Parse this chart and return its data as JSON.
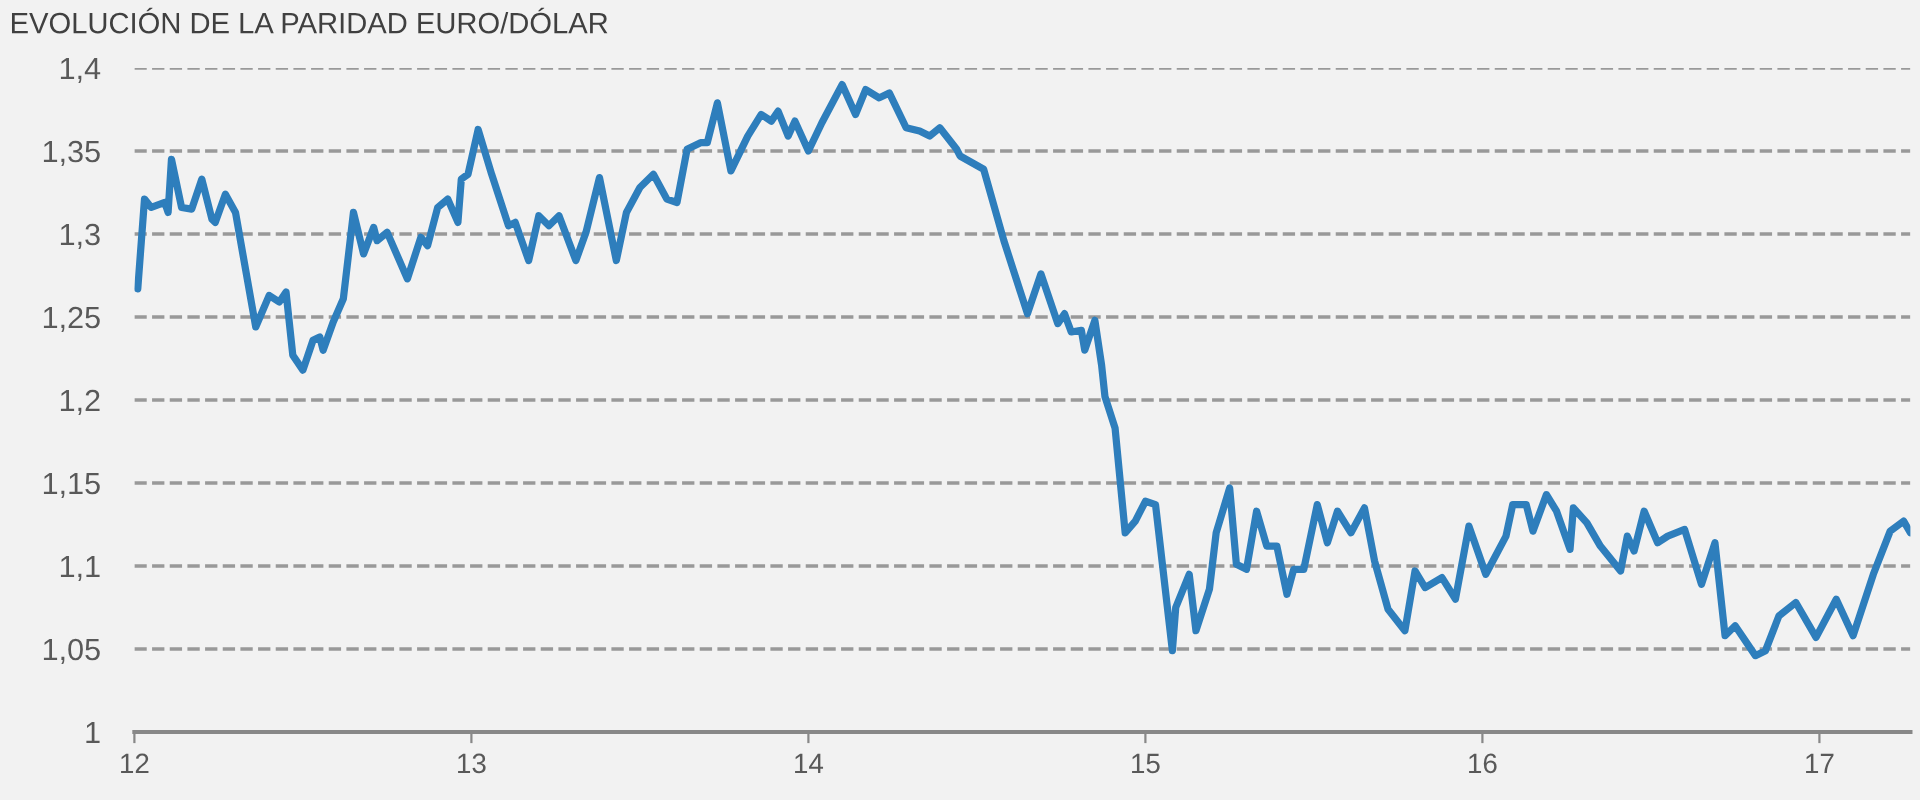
{
  "chart_data": {
    "type": "line",
    "title": "EVOLUCIÓN DE LA PARIDAD EURO/DÓLAR",
    "x": [
      12.01,
      12.03,
      12.05,
      12.09,
      12.1,
      12.11,
      12.14,
      12.17,
      12.2,
      12.23,
      12.24,
      12.27,
      12.3,
      12.36,
      12.4,
      12.43,
      12.45,
      12.47,
      12.5,
      12.53,
      12.55,
      12.56,
      12.59,
      12.62,
      12.65,
      12.68,
      12.71,
      12.72,
      12.75,
      12.81,
      12.85,
      12.87,
      12.9,
      12.93,
      12.96,
      12.97,
      12.99,
      13.02,
      13.06,
      13.11,
      13.13,
      13.17,
      13.2,
      13.23,
      13.26,
      13.31,
      13.34,
      13.38,
      13.43,
      13.46,
      13.5,
      13.54,
      13.58,
      13.61,
      13.64,
      13.68,
      13.7,
      13.73,
      13.77,
      13.82,
      13.86,
      13.89,
      13.91,
      13.94,
      13.96,
      14.0,
      14.04,
      14.1,
      14.14,
      14.17,
      14.21,
      14.24,
      14.29,
      14.33,
      14.36,
      14.39,
      14.44,
      14.45,
      14.52,
      14.58,
      14.65,
      14.69,
      14.74,
      14.76,
      14.78,
      14.81,
      14.82,
      14.85,
      14.87,
      14.88,
      14.91,
      14.94,
      14.97,
      15.0,
      15.03,
      15.08,
      15.09,
      15.13,
      15.15,
      15.19,
      15.21,
      15.25,
      15.27,
      15.3,
      15.33,
      15.36,
      15.39,
      15.42,
      15.44,
      15.47,
      15.51,
      15.54,
      15.57,
      15.61,
      15.65,
      15.68,
      15.72,
      15.77,
      15.8,
      15.83,
      15.88,
      15.92,
      15.96,
      16.01,
      16.07,
      16.09,
      16.13,
      16.15,
      16.19,
      16.22,
      16.26,
      16.27,
      16.31,
      16.35,
      16.41,
      16.43,
      16.45,
      16.48,
      16.52,
      16.55,
      16.6,
      16.65,
      16.69,
      16.72,
      16.75,
      16.81,
      16.84,
      16.88,
      16.93,
      16.99,
      17.05,
      17.1,
      17.16,
      17.21,
      17.25,
      17.27
    ],
    "series": [
      {
        "color": "#2e7ebc",
        "values": [
          1.267,
          1.321,
          1.316,
          1.319,
          1.313,
          1.345,
          1.316,
          1.315,
          1.333,
          1.309,
          1.307,
          1.324,
          1.313,
          1.244,
          1.263,
          1.259,
          1.265,
          1.227,
          1.218,
          1.236,
          1.238,
          1.23,
          1.247,
          1.261,
          1.313,
          1.288,
          1.304,
          1.296,
          1.301,
          1.273,
          1.298,
          1.293,
          1.316,
          1.321,
          1.307,
          1.333,
          1.336,
          1.363,
          1.336,
          1.305,
          1.307,
          1.284,
          1.311,
          1.305,
          1.311,
          1.284,
          1.301,
          1.334,
          1.284,
          1.313,
          1.328,
          1.336,
          1.321,
          1.319,
          1.351,
          1.355,
          1.355,
          1.379,
          1.338,
          1.359,
          1.372,
          1.368,
          1.374,
          1.359,
          1.368,
          1.35,
          1.367,
          1.39,
          1.372,
          1.387,
          1.382,
          1.385,
          1.364,
          1.362,
          1.359,
          1.364,
          1.351,
          1.347,
          1.339,
          1.296,
          1.252,
          1.276,
          1.246,
          1.252,
          1.241,
          1.242,
          1.23,
          1.248,
          1.221,
          1.202,
          1.183,
          1.12,
          1.127,
          1.139,
          1.137,
          1.049,
          1.075,
          1.095,
          1.061,
          1.086,
          1.12,
          1.147,
          1.101,
          1.098,
          1.133,
          1.112,
          1.112,
          1.083,
          1.098,
          1.098,
          1.137,
          1.114,
          1.133,
          1.12,
          1.135,
          1.103,
          1.074,
          1.061,
          1.097,
          1.087,
          1.093,
          1.08,
          1.124,
          1.095,
          1.118,
          1.137,
          1.137,
          1.121,
          1.143,
          1.133,
          1.11,
          1.135,
          1.126,
          1.112,
          1.097,
          1.118,
          1.109,
          1.133,
          1.114,
          1.118,
          1.122,
          1.089,
          1.114,
          1.058,
          1.064,
          1.046,
          1.049,
          1.07,
          1.078,
          1.057,
          1.08,
          1.058,
          1.095,
          1.121,
          1.127,
          1.12
        ]
      }
    ],
    "xlim": [
      12,
      17.27
    ],
    "xticks": [
      12,
      13,
      14,
      15,
      16,
      17
    ],
    "ylim": [
      1,
      1.4
    ],
    "yticks": [
      1,
      {
        "value": 1.05,
        "label": "1,05"
      },
      {
        "value": 1.1,
        "label": "1,1"
      },
      {
        "value": 1.15,
        "label": "1,15"
      },
      {
        "value": 1.2,
        "label": "1,2"
      },
      {
        "value": 1.25,
        "label": "1,25"
      },
      {
        "value": 1.3,
        "label": "1,3"
      },
      {
        "value": 1.35,
        "label": "1,35"
      },
      {
        "value": 1.4,
        "label": "1,4"
      }
    ],
    "grid": "y",
    "line_style": "solid",
    "marker": "none"
  }
}
